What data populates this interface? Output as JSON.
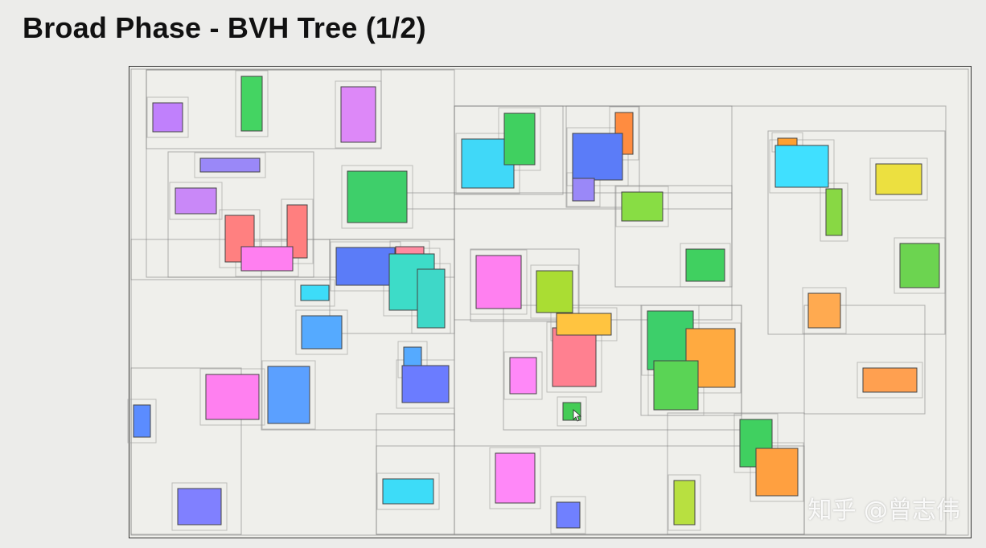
{
  "slide": {
    "title": "Broad Phase - BVH Tree (1/2)",
    "watermark": "知乎 @曾志伟"
  },
  "diagram": {
    "type": "bounding volume hierarchy",
    "node_box_color": "#888888",
    "leaf_object_count": 50,
    "cursor_icon": "mouse-pointer-icon"
  }
}
